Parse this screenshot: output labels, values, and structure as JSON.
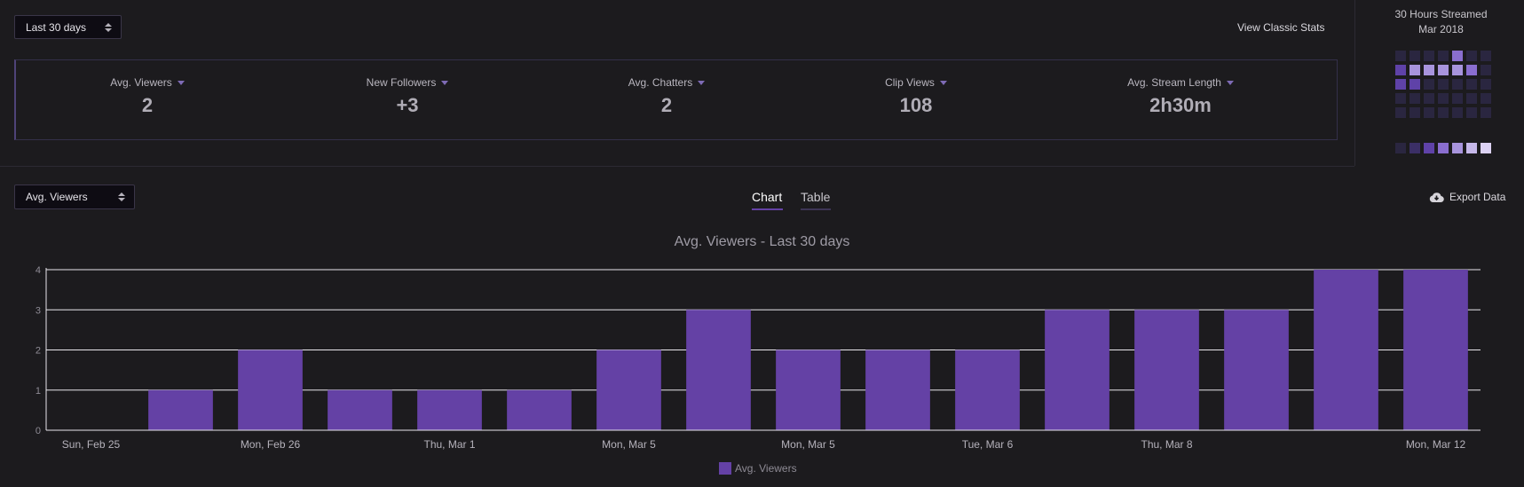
{
  "date_range_select": {
    "value": "Last 30 days"
  },
  "classic_stats_link": "View Classic Stats",
  "stats": [
    {
      "label": "Avg. Viewers",
      "value": "2"
    },
    {
      "label": "New Followers",
      "value": "+3"
    },
    {
      "label": "Avg. Chatters",
      "value": "2"
    },
    {
      "label": "Clip Views",
      "value": "108"
    },
    {
      "label": "Avg. Stream Length",
      "value": "2h30m"
    }
  ],
  "streamed": {
    "title": "30 Hours Streamed",
    "month": "Mar 2018",
    "calendar": [
      [
        0,
        0,
        0,
        0,
        3,
        0,
        0
      ],
      [
        2,
        4,
        4,
        4,
        4,
        3,
        0
      ],
      [
        2,
        2,
        0,
        0,
        0,
        0,
        0
      ],
      [
        0,
        0,
        0,
        0,
        0,
        0,
        0
      ],
      [
        0,
        0,
        0,
        0,
        0,
        0,
        0
      ]
    ],
    "legend_levels": [
      0,
      1,
      2,
      3,
      4,
      5,
      6
    ],
    "colors": {
      "levels": [
        "#2a2640",
        "#3b2f66",
        "#5f42a8",
        "#8a6ecf",
        "#a894dd",
        "#c6b8ea",
        "#dcd2f4"
      ]
    }
  },
  "metric_select": {
    "value": "Avg. Viewers"
  },
  "tabs": [
    {
      "label": "Chart",
      "active": true
    },
    {
      "label": "Table",
      "active": false
    }
  ],
  "export_label": "Export Data",
  "chart_data": {
    "type": "bar",
    "title": "Avg. Viewers - Last 30 days",
    "categories": [
      "Sun, Feb 25",
      "",
      "Mon, Feb 26",
      "",
      "Thu, Mar 1",
      "",
      "Mon, Mar 5",
      "",
      "Mon, Mar 5",
      "",
      "Tue, Mar 6",
      "",
      "Thu, Mar 8",
      "",
      "",
      "Mon, Mar 12"
    ],
    "values": [
      0,
      1,
      2,
      1,
      1,
      1,
      2,
      3,
      2,
      2,
      2,
      3,
      3,
      3,
      4,
      4
    ],
    "series_name": "Avg. Viewers",
    "ylim": [
      0,
      4
    ],
    "yticks": [
      0,
      1,
      2,
      3,
      4
    ],
    "grid": true,
    "color": "#6441a5",
    "legend_position": "bottom"
  },
  "colors": {
    "accent": "#6441a5",
    "background": "#1c1b1e"
  }
}
